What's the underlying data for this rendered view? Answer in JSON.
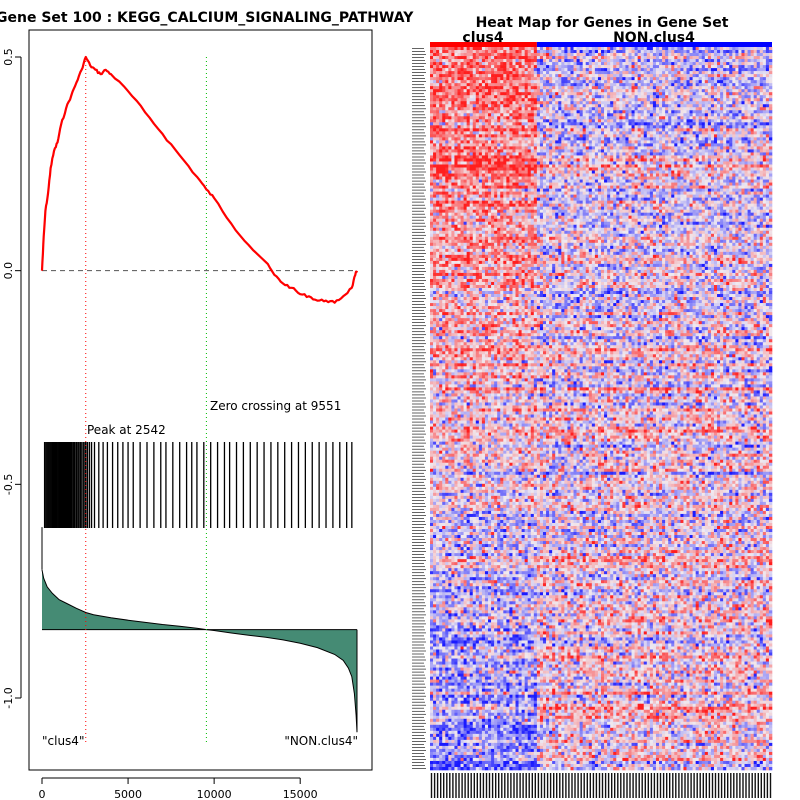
{
  "chart_data": [
    {
      "type": "line",
      "title": "Gene Set  100 : KEGG_CALCIUM_SIGNALING_PATHWAY",
      "xlim": [
        0,
        18300
      ],
      "ylim": [
        -1.1,
        0.55
      ],
      "x_ticks": [
        0,
        5000,
        10000,
        15000
      ],
      "x_tick_labels": [
        "0",
        "5000",
        "10000",
        "15000"
      ],
      "y_ticks": [
        0.5,
        0.0,
        -0.5,
        -1.0
      ],
      "y_tick_labels": [
        "0.5",
        "0.0",
        "-0.5",
        "-1.0"
      ],
      "colors": {
        "running_es": "#ff0000",
        "peak_line": "#ff0000",
        "zero_line": "#00bb00",
        "baseline": "#555555",
        "ranked_fill": "#458b74",
        "hits": "#000000"
      },
      "running_es": {
        "x": [
          0,
          100,
          200,
          350,
          500,
          700,
          900,
          1100,
          1400,
          1700,
          2000,
          2300,
          2542,
          2800,
          3100,
          3400,
          3700,
          4000,
          5000,
          6000,
          7000,
          8000,
          9000,
          9551,
          10000,
          11000,
          12000,
          13000,
          13500,
          14000,
          14500,
          15000,
          15500,
          16000,
          16500,
          17000,
          17500,
          18000,
          18200,
          18300
        ],
        "y": [
          0.0,
          0.08,
          0.14,
          0.18,
          0.24,
          0.28,
          0.3,
          0.34,
          0.38,
          0.41,
          0.44,
          0.47,
          0.5,
          0.48,
          0.47,
          0.46,
          0.47,
          0.46,
          0.42,
          0.37,
          0.32,
          0.27,
          0.22,
          0.19,
          0.17,
          0.11,
          0.06,
          0.02,
          -0.01,
          -0.03,
          -0.04,
          -0.055,
          -0.06,
          -0.07,
          -0.07,
          -0.075,
          -0.06,
          -0.04,
          -0.01,
          0.0
        ]
      },
      "hits": [
        150,
        220,
        290,
        360,
        420,
        480,
        540,
        600,
        650,
        700,
        760,
        810,
        860,
        920,
        980,
        1030,
        1080,
        1140,
        1200,
        1250,
        1310,
        1360,
        1420,
        1480,
        1540,
        1600,
        1660,
        1720,
        1790,
        1850,
        1920,
        2000,
        2080,
        2150,
        2230,
        2310,
        2400,
        2490,
        2560,
        2650,
        2760,
        2880,
        3050,
        3300,
        3550,
        3800,
        4100,
        4400,
        4700,
        5000,
        5300,
        5700,
        6100,
        6500,
        6900,
        7200,
        7600,
        8000,
        8400,
        8700,
        9000,
        9400,
        9800,
        10200,
        10600,
        10900,
        11300,
        11700,
        12100,
        12500,
        12900,
        13300,
        13700,
        14100,
        14500,
        14900,
        15300,
        15700,
        16100,
        16500,
        16900,
        17300,
        17700,
        18000
      ],
      "ranked_metric": {
        "x": [
          0,
          100,
          300,
          600,
          1000,
          1500,
          2000,
          2542,
          3000,
          4000,
          5000,
          6000,
          7000,
          8000,
          9000,
          9551,
          10000,
          11000,
          12000,
          13000,
          14000,
          15000,
          16000,
          17000,
          17500,
          17800,
          18000,
          18150,
          18250,
          18300
        ],
        "y": [
          -0.7,
          -0.72,
          -0.74,
          -0.755,
          -0.77,
          -0.78,
          -0.79,
          -0.8,
          -0.805,
          -0.812,
          -0.818,
          -0.823,
          -0.828,
          -0.832,
          -0.837,
          -0.84,
          -0.842,
          -0.848,
          -0.853,
          -0.858,
          -0.864,
          -0.872,
          -0.882,
          -0.898,
          -0.912,
          -0.93,
          -0.95,
          -0.99,
          -1.04,
          -1.08
        ],
        "baseline": -0.84
      },
      "peak_x": 2542,
      "zero_cross_x": 9551,
      "annotations": {
        "peak": "Peak at 2542",
        "zero": "Zero crossing at 9551",
        "left_label": "\"clus4\"",
        "right_label": "\"NON.clus4\""
      }
    },
    {
      "type": "heatmap",
      "title": "Heat Map for Genes in Gene Set",
      "groups": [
        {
          "label": "clus4",
          "color": "#ff0000",
          "n": 35
        },
        {
          "label": "NON.clus4",
          "color": "#0000ff",
          "n": 77
        }
      ],
      "n_rows": 240,
      "colors": {
        "high": "#ff2020",
        "mid": "#f0eaf0",
        "low": "#1a1aff"
      },
      "seed": 100
    }
  ]
}
